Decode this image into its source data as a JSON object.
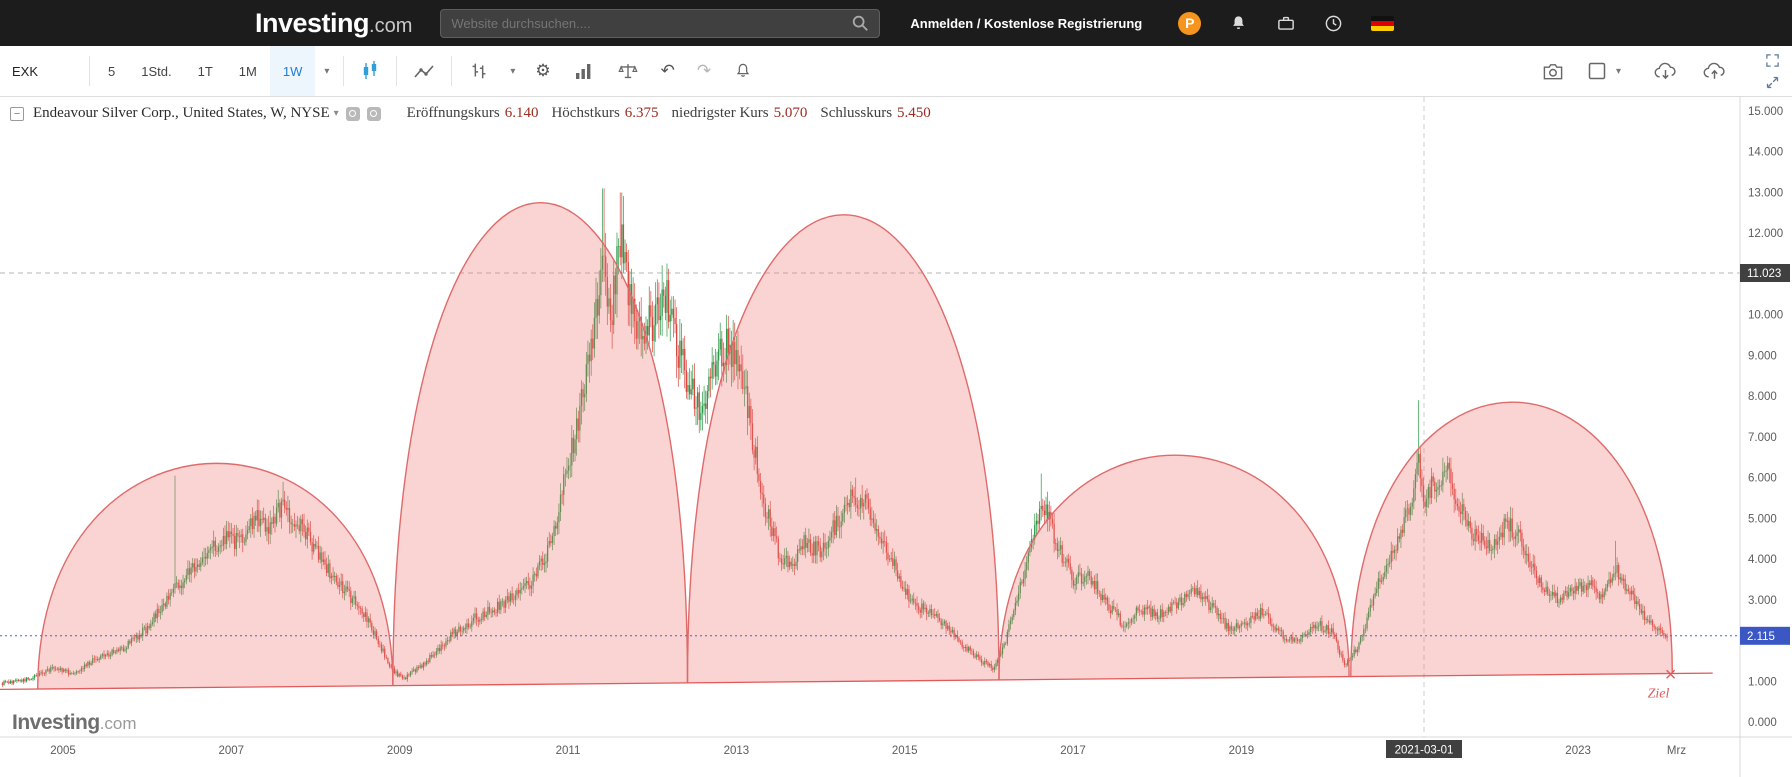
{
  "topbar": {
    "logo_main": "Investing",
    "logo_suffix": ".com",
    "search_placeholder": "Website durchsuchen....",
    "auth_text": "Anmelden / Kostenlose Registrierung",
    "pro_badge_letter": "P"
  },
  "icons": {
    "gear": "⚙",
    "undo": "↶",
    "redo": "↷",
    "caret": "▾",
    "collapse": "−"
  },
  "toolbar": {
    "symbol": "EXK",
    "timeframes": [
      "5",
      "1Std.",
      "1T",
      "1M",
      "1W"
    ],
    "active_timeframe": "1W"
  },
  "chart_header": {
    "title": "Endeavour Silver Corp., United States, W, NYSE",
    "ohlc": [
      {
        "label": "Eröffnungskurs",
        "value": "6.140"
      },
      {
        "label": "Höchstkurs",
        "value": "6.375"
      },
      {
        "label": "niedrigster Kurs",
        "value": "5.070"
      },
      {
        "label": "Schlusskurs",
        "value": "5.450"
      }
    ]
  },
  "watermark": {
    "main": "Investing",
    "suffix": ".com"
  },
  "chart_data": {
    "type": "candlestick",
    "title": "Endeavour Silver Corp., United States, W, NYSE",
    "interval": "weekly",
    "y_axis": {
      "min": 0,
      "max": 15,
      "ticks": [
        [
          15,
          "15.000"
        ],
        [
          14,
          "14.000"
        ],
        [
          13,
          "13.000"
        ],
        [
          12,
          "12.000"
        ],
        [
          10,
          "10.000"
        ],
        [
          9,
          "9.000"
        ],
        [
          8,
          "8.000"
        ],
        [
          7,
          "7.000"
        ],
        [
          6,
          "6.000"
        ],
        [
          5,
          "5.000"
        ],
        [
          4,
          "4.000"
        ],
        [
          3,
          "3.000"
        ],
        [
          1,
          "1.000"
        ],
        [
          0,
          "0.000"
        ]
      ]
    },
    "x_axis": {
      "ticks": [
        [
          2005,
          "2005"
        ],
        [
          2007,
          "2007"
        ],
        [
          2009,
          "2009"
        ],
        [
          2011,
          "2011"
        ],
        [
          2013,
          "2013"
        ],
        [
          2015,
          "2015"
        ],
        [
          2017,
          "2017"
        ],
        [
          2019,
          "2019"
        ],
        [
          2023,
          "2023"
        ],
        [
          2024.17,
          "Mrz"
        ]
      ],
      "crosshair": {
        "t": 2021.17,
        "label": "2021-03-01"
      }
    },
    "current_price": {
      "value": 2.115,
      "label": "2.115"
    },
    "marked_price": {
      "value": 11.023,
      "label": "11.023"
    },
    "ohlc_selected": {
      "open": 6.14,
      "high": 6.375,
      "low": 5.07,
      "close": 5.45
    },
    "trendline": {
      "from": [
        2004.25,
        0.8
      ],
      "to": [
        2024.6,
        1.2
      ]
    },
    "target": {
      "label": "Ziel",
      "t": 2024.1,
      "price": 1.17
    },
    "domes": [
      {
        "start": 2004.7,
        "end": 2008.92,
        "peak": 6.35
      },
      {
        "start": 2008.92,
        "end": 2012.42,
        "peak": 12.75
      },
      {
        "start": 2012.42,
        "end": 2016.12,
        "peak": 12.45
      },
      {
        "start": 2016.12,
        "end": 2020.28,
        "peak": 6.55
      },
      {
        "start": 2020.3,
        "end": 2024.12,
        "peak": 7.85
      }
    ],
    "price_anchors": [
      [
        2004.28,
        0.95
      ],
      [
        2004.6,
        1.05
      ],
      [
        2004.9,
        1.35
      ],
      [
        2005.1,
        1.2
      ],
      [
        2005.4,
        1.55
      ],
      [
        2005.7,
        1.8
      ],
      [
        2006.0,
        2.3
      ],
      [
        2006.2,
        2.9
      ],
      [
        2006.35,
        3.3
      ],
      [
        2006.5,
        3.7
      ],
      [
        2006.7,
        4.1
      ],
      [
        2006.9,
        4.5
      ],
      [
        2007.1,
        4.4
      ],
      [
        2007.3,
        5.1
      ],
      [
        2007.45,
        4.8
      ],
      [
        2007.6,
        5.3
      ],
      [
        2007.75,
        4.9
      ],
      [
        2007.9,
        4.6
      ],
      [
        2008.1,
        3.9
      ],
      [
        2008.3,
        3.3
      ],
      [
        2008.5,
        2.9
      ],
      [
        2008.7,
        2.2
      ],
      [
        2008.9,
        1.3
      ],
      [
        2009.05,
        1.05
      ],
      [
        2009.3,
        1.45
      ],
      [
        2009.6,
        2.1
      ],
      [
        2009.9,
        2.55
      ],
      [
        2010.1,
        2.75
      ],
      [
        2010.35,
        3.1
      ],
      [
        2010.6,
        3.5
      ],
      [
        2010.8,
        4.4
      ],
      [
        2011.0,
        6.3
      ],
      [
        2011.15,
        7.8
      ],
      [
        2011.3,
        9.6
      ],
      [
        2011.42,
        11.6
      ],
      [
        2011.5,
        9.8
      ],
      [
        2011.62,
        11.9
      ],
      [
        2011.72,
        10.6
      ],
      [
        2011.85,
        9.6
      ],
      [
        2012.0,
        9.8
      ],
      [
        2012.15,
        10.6
      ],
      [
        2012.3,
        9.2
      ],
      [
        2012.45,
        8.2
      ],
      [
        2012.6,
        7.6
      ],
      [
        2012.75,
        8.8
      ],
      [
        2012.9,
        9.3
      ],
      [
        2013.05,
        8.6
      ],
      [
        2013.2,
        6.9
      ],
      [
        2013.35,
        5.2
      ],
      [
        2013.5,
        4.2
      ],
      [
        2013.65,
        3.7
      ],
      [
        2013.8,
        4.4
      ],
      [
        2014.0,
        4.2
      ],
      [
        2014.2,
        4.9
      ],
      [
        2014.4,
        5.6
      ],
      [
        2014.55,
        5.3
      ],
      [
        2014.7,
        4.7
      ],
      [
        2014.9,
        3.7
      ],
      [
        2015.1,
        2.9
      ],
      [
        2015.35,
        2.6
      ],
      [
        2015.6,
        2.1
      ],
      [
        2015.85,
        1.6
      ],
      [
        2016.05,
        1.3
      ],
      [
        2016.2,
        2.0
      ],
      [
        2016.4,
        3.5
      ],
      [
        2016.55,
        4.8
      ],
      [
        2016.65,
        5.4
      ],
      [
        2016.8,
        4.4
      ],
      [
        2017.0,
        3.5
      ],
      [
        2017.2,
        3.6
      ],
      [
        2017.4,
        2.9
      ],
      [
        2017.6,
        2.4
      ],
      [
        2017.8,
        2.8
      ],
      [
        2018.0,
        2.6
      ],
      [
        2018.25,
        2.9
      ],
      [
        2018.45,
        3.2
      ],
      [
        2018.65,
        2.8
      ],
      [
        2018.85,
        2.3
      ],
      [
        2019.05,
        2.4
      ],
      [
        2019.25,
        2.7
      ],
      [
        2019.5,
        2.1
      ],
      [
        2019.7,
        2.0
      ],
      [
        2019.9,
        2.4
      ],
      [
        2020.1,
        2.2
      ],
      [
        2020.22,
        1.35
      ],
      [
        2020.4,
        1.9
      ],
      [
        2020.55,
        2.9
      ],
      [
        2020.7,
        3.8
      ],
      [
        2020.85,
        4.3
      ],
      [
        2021.0,
        5.3
      ],
      [
        2021.1,
        6.4
      ],
      [
        2021.17,
        5.5
      ],
      [
        2021.3,
        5.9
      ],
      [
        2021.45,
        6.3
      ],
      [
        2021.6,
        5.2
      ],
      [
        2021.8,
        4.5
      ],
      [
        2022.0,
        4.3
      ],
      [
        2022.15,
        4.9
      ],
      [
        2022.35,
        4.4
      ],
      [
        2022.55,
        3.4
      ],
      [
        2022.75,
        3.0
      ],
      [
        2022.95,
        3.3
      ],
      [
        2023.1,
        3.4
      ],
      [
        2023.3,
        3.1
      ],
      [
        2023.45,
        3.8
      ],
      [
        2023.6,
        3.2
      ],
      [
        2023.75,
        2.7
      ],
      [
        2023.9,
        2.3
      ],
      [
        2024.0,
        2.15
      ],
      [
        2024.06,
        2.115
      ]
    ],
    "spike_highs": [
      [
        2006.33,
        6.05
      ],
      [
        2007.62,
        5.9
      ],
      [
        2011.42,
        13.1
      ],
      [
        2011.63,
        13.0
      ],
      [
        2014.42,
        6.0
      ],
      [
        2016.62,
        6.1
      ],
      [
        2021.1,
        7.9
      ],
      [
        2023.45,
        4.45
      ]
    ],
    "colors": {
      "up": "#2a9747",
      "down": "#d9453d",
      "dome_fill": "rgba(238,118,118,0.32)",
      "dome_stroke": "#e06a6a",
      "trend": "#e05a5a",
      "current_line": "#4466cc",
      "current_badge": "#3a57c4",
      "marked_badge": "#404040",
      "crosshair": "#cfcfcf",
      "axis_text": "#5c5c5c"
    }
  }
}
